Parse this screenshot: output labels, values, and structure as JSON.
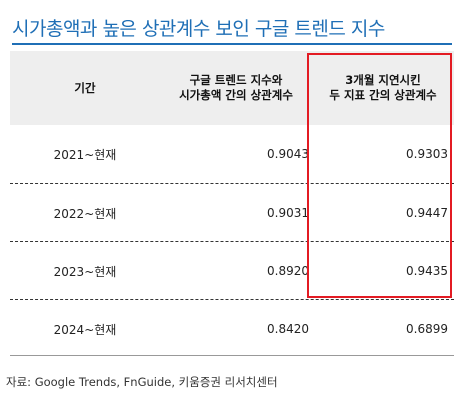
{
  "title": "시가총액과 높은 상관계수 보인 구글 트렌드 지수",
  "table": {
    "headers": {
      "period": "기간",
      "google_line1": "구글 트렌드 지수와",
      "google_line2": "시가총액 간의 상관계수",
      "lag_line1": "3개월 지연시킨",
      "lag_line2": "두 지표 간의 상관계수"
    },
    "rows": [
      {
        "period": "2021~현재",
        "google": "0.9043",
        "lag": "0.9303"
      },
      {
        "period": "2022~현재",
        "google": "0.9031",
        "lag": "0.9447"
      },
      {
        "period": "2023~현재",
        "google": "0.8920",
        "lag": "0.9435"
      },
      {
        "period": "2024~현재",
        "google": "0.8420",
        "lag": "0.6899"
      }
    ]
  },
  "source": "자료: Google Trends, FnGuide, 키움증권 리서치센터",
  "colors": {
    "title": "#1f6fb6",
    "highlight_border": "#e31b23",
    "header_bg": "#eeeeee"
  }
}
